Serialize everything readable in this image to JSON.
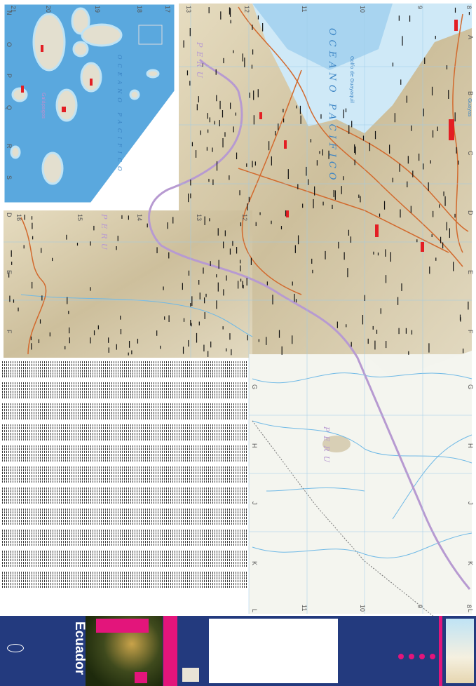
{
  "map": {
    "main_labels": {
      "ocean": "OCEANO PACIFICO",
      "gulf": "Golfo de Guayaquil",
      "country_north": "PERU",
      "country_west": "PERU",
      "country_south": "PERU",
      "province": "Guayas"
    },
    "inset_labels": {
      "ocean": "OCEANO PACIFICO",
      "islands": "Galápagos"
    },
    "grid": {
      "main_columns_top": [
        "13",
        "12",
        "11",
        "10",
        "9",
        "8"
      ],
      "main_columns_bottom": [
        "11",
        "10",
        "9",
        "8"
      ],
      "west_columns": [
        "16",
        "15",
        "14",
        "13",
        "12"
      ],
      "rows_right": [
        "A",
        "B",
        "C",
        "D",
        "E",
        "F",
        "G",
        "H",
        "J",
        "K",
        "L"
      ],
      "rows_left": [
        "D",
        "E",
        "F"
      ],
      "rows_bottom_left": [
        "G",
        "H",
        "J",
        "K",
        "L"
      ],
      "inset_columns": [
        "21",
        "20",
        "19",
        "18",
        "17"
      ],
      "inset_rows": [
        "N",
        "O",
        "P",
        "Q",
        "R",
        "S"
      ]
    },
    "colors": {
      "ocean": "#cfe9f7",
      "deep_ocean": "#5aa8de",
      "terrain": "#d9cfb4",
      "lowland": "#f3f4ee",
      "border": "#b79ad1",
      "road": "#d2692d",
      "river": "#6fb9e6"
    }
  },
  "cover": {
    "title": "Ecuador"
  }
}
